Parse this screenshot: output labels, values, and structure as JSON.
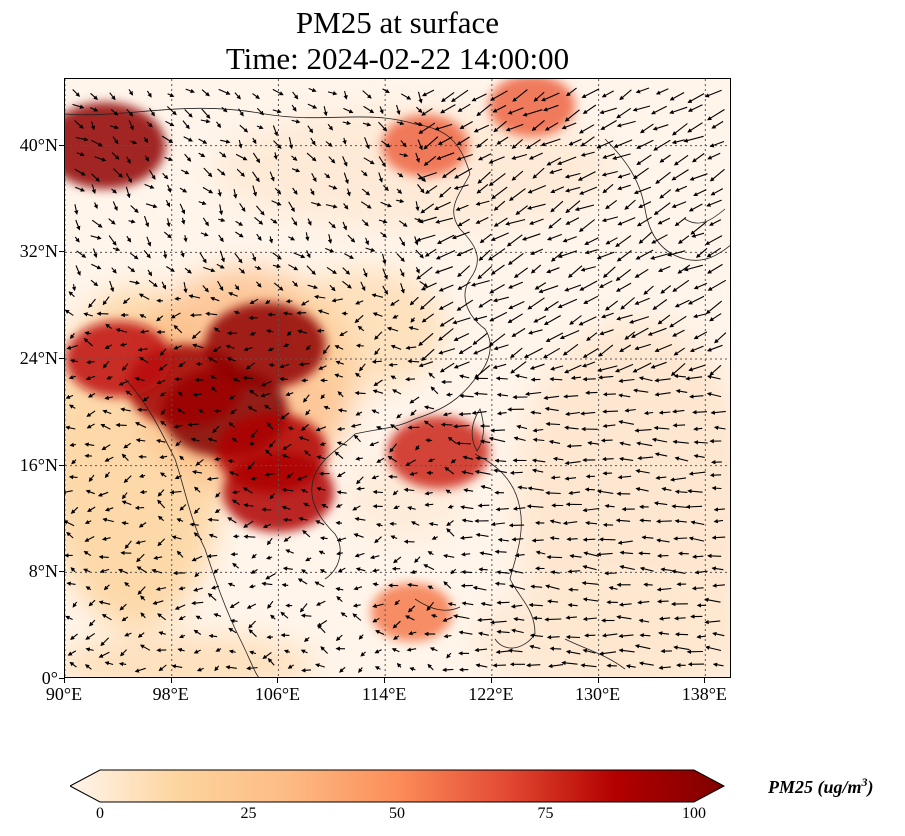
{
  "title": {
    "line1": "PM25 at surface",
    "line2": "Time: 2024-02-22 14:00:00"
  },
  "map": {
    "lon_range": [
      90,
      140
    ],
    "lat_range": [
      0,
      45
    ],
    "lat_ticks": [
      {
        "value": 0,
        "label": "0°"
      },
      {
        "value": 8,
        "label": "8°N"
      },
      {
        "value": 16,
        "label": "16°N"
      },
      {
        "value": 24,
        "label": "24°N"
      },
      {
        "value": 32,
        "label": "32°N"
      },
      {
        "value": 40,
        "label": "40°N"
      }
    ],
    "lon_ticks": [
      {
        "value": 90,
        "label": "90°E"
      },
      {
        "value": 98,
        "label": "98°E"
      },
      {
        "value": 106,
        "label": "106°E"
      },
      {
        "value": 114,
        "label": "114°E"
      },
      {
        "value": 122,
        "label": "122°E"
      },
      {
        "value": 130,
        "label": "130°E"
      },
      {
        "value": 138,
        "label": "138°E"
      }
    ],
    "gridlines": true,
    "pm25_hotspots": [
      {
        "lon": 93,
        "lat": 40,
        "value": 95
      },
      {
        "lon": 102,
        "lat": 20,
        "value": 100
      },
      {
        "lon": 99,
        "lat": 22,
        "value": 90
      },
      {
        "lon": 105,
        "lat": 25,
        "value": 95
      },
      {
        "lon": 105.5,
        "lat": 17,
        "value": 85
      },
      {
        "lon": 106,
        "lat": 14,
        "value": 85
      },
      {
        "lon": 94,
        "lat": 24,
        "value": 80
      },
      {
        "lon": 118,
        "lat": 17,
        "value": 75
      },
      {
        "lon": 117,
        "lat": 40,
        "value": 60
      },
      {
        "lon": 125,
        "lat": 43,
        "value": 60
      },
      {
        "lon": 116,
        "lat": 5,
        "value": 55
      }
    ]
  },
  "colorbar": {
    "min": 0,
    "max": 100,
    "ticks": [
      0,
      25,
      50,
      75,
      100
    ],
    "tick_labels": [
      "0",
      "25",
      "50",
      "75",
      "100"
    ],
    "colors": [
      "#fff5eb",
      "#fdd49e",
      "#fdbb84",
      "#fc8d59",
      "#e34a33",
      "#b30000",
      "#7f0000"
    ],
    "label_prefix": "PM25 (ug/m",
    "label_sup": "3",
    "label_suffix": ")"
  }
}
